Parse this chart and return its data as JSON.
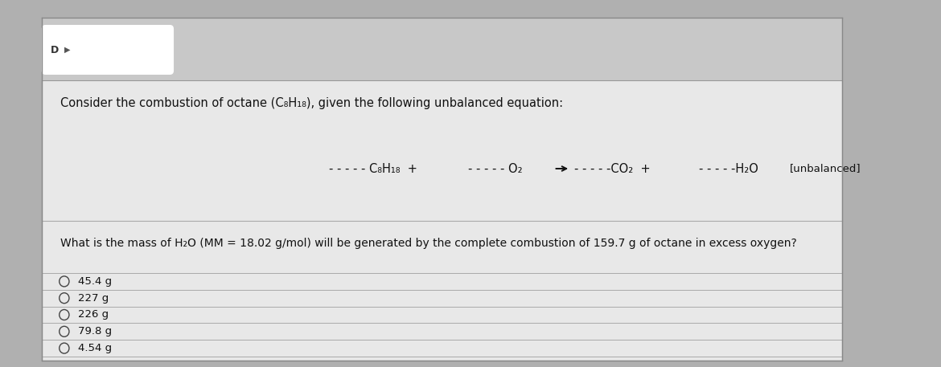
{
  "outer_bg": "#b0b0b0",
  "header_bg": "#c8c8c8",
  "card_bg": "#e8e8e8",
  "option_bg": "#e0e0e0",
  "white_blob": "#ffffff",
  "divider_color": "#aaaaaa",
  "text_color": "#111111",
  "option_circle_color": "#444444",
  "title_text": "Consider the combustion of octane (C₈H₁₈), given the following unbalanced equation:",
  "question_text": "What is the mass of H₂O (MM = 18.02 g/mol) will be generated by the complete combustion of 159.7 g of octane in excess oxygen?",
  "options": [
    "45.4 g",
    "227 g",
    "226 g",
    "79.8 g",
    "4.54 g"
  ],
  "eq_dashes": "- - - - -",
  "font_size_title": 10.5,
  "font_size_equation": 10.5,
  "font_size_question": 10.0,
  "font_size_option": 9.5
}
